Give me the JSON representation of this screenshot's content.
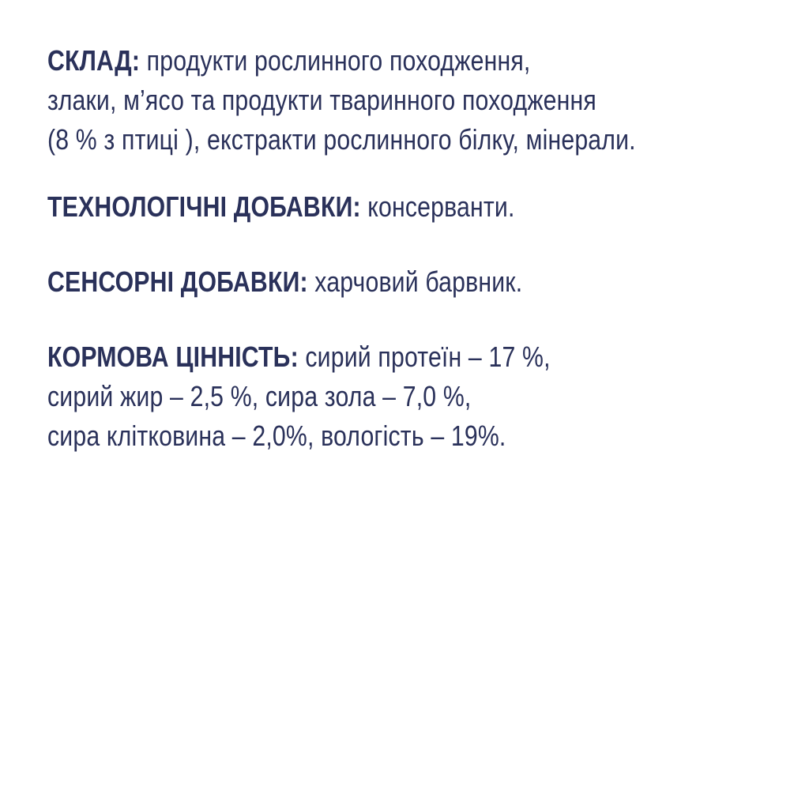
{
  "page": {
    "background_color": "#ffffff",
    "text_color": "#2a315a",
    "language": "uk",
    "kind": "pet-food label ingredients panel"
  },
  "sections": [
    {
      "id": "composition",
      "lines": [
        {
          "bold": "СКЛАД:",
          "text": " продукти рослинного походження,"
        },
        {
          "bold": "",
          "text": "злаки, м’ясо та продукти тваринного походження"
        },
        {
          "bold": "",
          "text": "(8 % з птиці ), екстракти рослинного білку, мінерали."
        }
      ]
    },
    {
      "id": "technological-additives",
      "lines": [
        {
          "bold": "ТЕХНОЛОГІЧНІ ДОБАВКИ:",
          "text": " консерванти."
        }
      ]
    },
    {
      "id": "sensory-additives",
      "lines": [
        {
          "bold": "СЕНСОРНІ ДОБАВКИ:",
          "text": " харчовий барвник."
        }
      ]
    },
    {
      "id": "feed-value",
      "lines": [
        {
          "bold": "КОРМОВА ЦІННІСТЬ:",
          "text": " сирий протеїн – 17 %,"
        },
        {
          "bold": "",
          "text": "сирий жир – 2,5 %, сира зола – 7,0 %,"
        },
        {
          "bold": "",
          "text": "сира клітковина – 2,0%, вологість – 19%."
        }
      ]
    }
  ]
}
